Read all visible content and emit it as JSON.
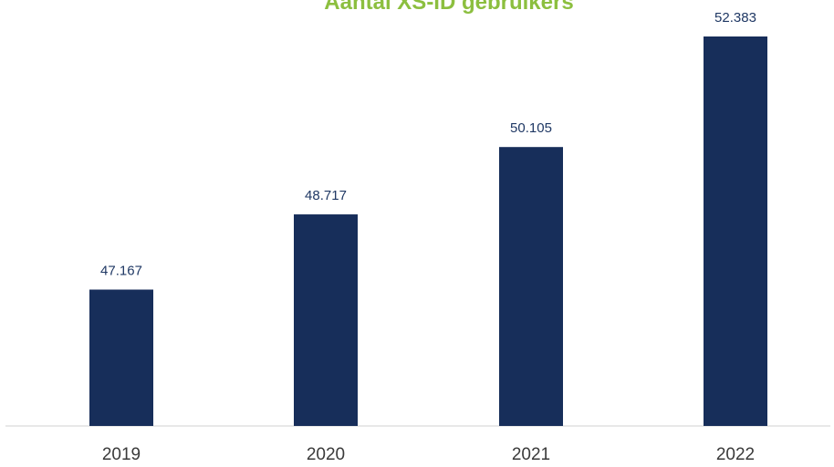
{
  "chart_data": {
    "type": "bar",
    "title": "Aantal XS-ID gebruikers",
    "categories": [
      "2019",
      "2020",
      "2021",
      "2022"
    ],
    "values": [
      47167,
      48717,
      50105,
      52383
    ],
    "value_labels": [
      "47.167",
      "48.717",
      "50.105",
      "52.383"
    ],
    "xlabel": "",
    "ylabel": "",
    "grid": false,
    "legend": false,
    "colors": {
      "bar": "#172e5a",
      "title": "#8cbf3f",
      "value_label": "#1f3864",
      "tick_label": "#3a3a3a",
      "axis": "#d0d0d0"
    }
  }
}
